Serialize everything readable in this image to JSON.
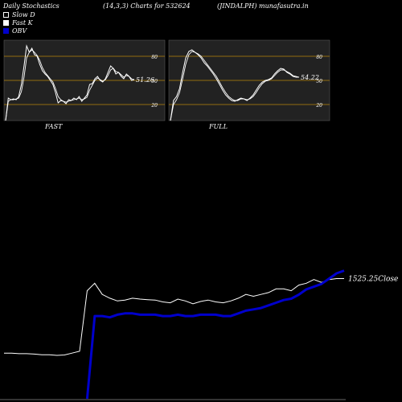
{
  "header": {
    "left": "Daily Stochastics",
    "center": "(14,3,3) Charts for 532624",
    "right": "(JINDALPH) munafasutra.in"
  },
  "legend": [
    {
      "label": "Slow  D",
      "color": "#000000",
      "border": "#ffffff"
    },
    {
      "label": "Fast K",
      "color": "#ffffff",
      "border": "#ffffff"
    },
    {
      "label": "OBV",
      "color": "#0000cc",
      "border": "#0000cc"
    }
  ],
  "colors": {
    "background": "#000000",
    "panel": "#222222",
    "ref_lines": "#b8860b",
    "stoch": "#ffffff",
    "obv": "#0000cc",
    "close": "#ffffff"
  },
  "chart_data": [
    {
      "type": "line",
      "name": "FAST",
      "ylim": [
        0,
        100
      ],
      "yticks": [
        20,
        50,
        80
      ],
      "last_value_label": "51.26",
      "series": [
        {
          "name": "Fast K",
          "values": [
            0,
            28,
            26,
            27,
            26,
            30,
            45,
            68,
            93,
            85,
            90,
            82,
            80,
            70,
            62,
            58,
            55,
            50,
            45,
            35,
            22,
            25,
            24,
            21,
            26,
            25,
            28,
            26,
            30,
            24,
            28,
            32,
            45,
            46,
            52,
            55,
            50,
            48,
            52,
            60,
            68,
            65,
            58,
            60,
            55,
            52,
            58,
            55,
            50,
            51
          ]
        },
        {
          "name": "Slow  D",
          "values": [
            0,
            24,
            26,
            26,
            27,
            28,
            36,
            54,
            78,
            85,
            88,
            85,
            81,
            75,
            66,
            60,
            56,
            52,
            48,
            40,
            30,
            26,
            24,
            23,
            24,
            25,
            26,
            27,
            28,
            26,
            27,
            29,
            38,
            44,
            50,
            53,
            51,
            49,
            51,
            56,
            63,
            65,
            61,
            60,
            57,
            54,
            56,
            55,
            52,
            51
          ]
        }
      ]
    },
    {
      "type": "line",
      "name": "FULL",
      "ylim": [
        0,
        100
      ],
      "yticks": [
        20,
        50,
        80
      ],
      "last_value_label": "54.22",
      "series": [
        {
          "name": "Fast K",
          "values": [
            0,
            25,
            30,
            40,
            60,
            78,
            86,
            88,
            85,
            82,
            78,
            72,
            68,
            63,
            58,
            52,
            45,
            38,
            32,
            28,
            25,
            24,
            26,
            28,
            27,
            25,
            28,
            32,
            38,
            44,
            48,
            50,
            51,
            53,
            58,
            62,
            65,
            64,
            60,
            58,
            55,
            54,
            54
          ]
        },
        {
          "name": "Slow  D",
          "values": [
            0,
            20,
            26,
            35,
            52,
            70,
            82,
            86,
            85,
            83,
            80,
            75,
            70,
            65,
            60,
            55,
            48,
            41,
            35,
            30,
            27,
            25,
            25,
            27,
            27,
            26,
            27,
            30,
            35,
            41,
            46,
            49,
            50,
            52,
            56,
            60,
            63,
            63,
            61,
            59,
            56,
            55,
            54
          ]
        }
      ]
    },
    {
      "type": "line",
      "name": "OBV and Close",
      "close_label": "1525.25",
      "close_suffix": "Close",
      "series": [
        {
          "name": "Close",
          "values": [
            1125,
            1125,
            1122,
            1122,
            1120,
            1116,
            1116,
            1113,
            1115,
            1125,
            1135,
            1460,
            1500,
            1440,
            1420,
            1405,
            1410,
            1420,
            1415,
            1412,
            1410,
            1400,
            1395,
            1415,
            1405,
            1390,
            1402,
            1410,
            1400,
            1395,
            1405,
            1420,
            1440,
            1430,
            1440,
            1450,
            1470,
            1470,
            1460,
            1490,
            1500,
            1520,
            1505,
            1520,
            1525,
            1525.25
          ]
        },
        {
          "name": "OBV",
          "values": [
            null,
            null,
            null,
            null,
            null,
            null,
            null,
            null,
            null,
            null,
            null,
            0,
            0.62,
            0.62,
            0.61,
            0.63,
            0.64,
            0.64,
            0.63,
            0.63,
            0.63,
            0.62,
            0.62,
            0.63,
            0.62,
            0.62,
            0.63,
            0.63,
            0.63,
            0.62,
            0.62,
            0.64,
            0.66,
            0.67,
            0.68,
            0.7,
            0.72,
            0.74,
            0.75,
            0.78,
            0.82,
            0.84,
            0.86,
            0.9,
            0.94,
            0.96
          ]
        }
      ]
    }
  ]
}
